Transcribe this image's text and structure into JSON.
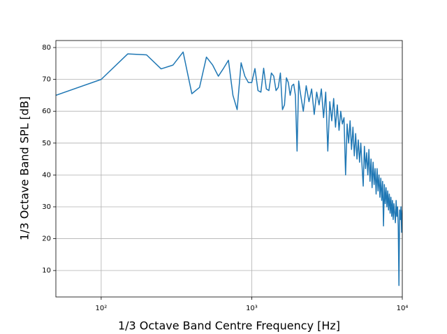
{
  "chart_data": {
    "type": "line",
    "xlabel": "1/3 Octave Band Centre Frequency [Hz]",
    "ylabel": "1/3 Octave Band SPL [dB]",
    "xscale": "log",
    "grid": true,
    "color": "#1f77b4",
    "xlim": [
      50,
      10000
    ],
    "ylim": [
      1.7,
      82.2
    ],
    "xticks": [
      {
        "value": 100,
        "label": "10²"
      },
      {
        "value": 1000,
        "label": "10³"
      },
      {
        "value": 10000,
        "label": "10⁴"
      }
    ],
    "yticks": [
      10,
      20,
      30,
      40,
      50,
      60,
      70,
      80
    ],
    "x": [
      50,
      100,
      150,
      200,
      250,
      300,
      350,
      400,
      450,
      500,
      550,
      600,
      650,
      700,
      750,
      800,
      850,
      900,
      950,
      1000,
      1050,
      1100,
      1150,
      1200,
      1250,
      1300,
      1350,
      1400,
      1450,
      1500,
      1550,
      1600,
      1650,
      1700,
      1750,
      1800,
      1850,
      1900,
      1950,
      2000,
      2050,
      2100,
      2200,
      2300,
      2400,
      2500,
      2600,
      2700,
      2800,
      2900,
      3000,
      3100,
      3200,
      3300,
      3400,
      3500,
      3600,
      3700,
      3800,
      3900,
      4000,
      4100,
      4200,
      4300,
      4400,
      4500,
      4600,
      4700,
      4800,
      4900,
      5000,
      5100,
      5200,
      5300,
      5400,
      5500,
      5600,
      5700,
      5800,
      5900,
      6000,
      6100,
      6200,
      6300,
      6400,
      6500,
      6600,
      6700,
      6800,
      6900,
      7000,
      7100,
      7200,
      7300,
      7400,
      7500,
      7600,
      7700,
      7800,
      7900,
      8000,
      8100,
      8200,
      8300,
      8400,
      8500,
      8600,
      8700,
      8800,
      8900,
      9000,
      9100,
      9200,
      9300,
      9400,
      9500,
      9600,
      9700,
      9800,
      9900,
      10000
    ],
    "values": [
      65,
      70,
      78,
      77.7,
      73.3,
      74.5,
      78.6,
      65.5,
      67.5,
      77,
      74.5,
      71,
      73.5,
      76,
      65,
      60.5,
      75.2,
      71,
      69,
      69,
      73.4,
      66.5,
      66,
      73.5,
      67,
      66.5,
      72,
      71,
      66.5,
      67.5,
      72,
      60.5,
      62,
      70.5,
      69,
      65,
      68,
      68.5,
      65,
      47.5,
      69.5,
      66,
      60,
      68,
      63,
      67,
      59,
      66,
      62,
      67,
      58,
      66,
      47.5,
      63,
      57,
      64,
      55,
      62,
      54,
      60,
      56,
      58,
      40,
      56,
      50,
      57,
      48,
      55,
      46,
      53,
      45,
      51,
      44,
      50,
      43,
      36.5,
      49,
      42,
      47,
      40,
      48,
      38,
      45,
      36,
      44,
      37,
      42,
      34,
      42,
      35,
      40,
      33,
      39,
      32,
      38,
      24,
      37,
      31,
      36,
      30,
      35,
      29,
      34,
      28,
      33,
      27,
      32,
      26,
      31,
      28,
      25,
      32,
      27,
      30,
      24,
      5.3,
      29,
      26,
      30,
      22,
      29
    ]
  }
}
